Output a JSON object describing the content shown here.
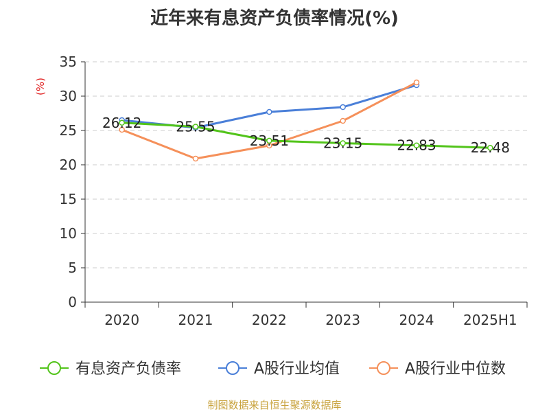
{
  "chart_data": {
    "type": "line",
    "title": "近年来有息资产负债率情况(%)",
    "ylabel": "(%)",
    "xlabel": "",
    "categories": [
      "2020",
      "2021",
      "2022",
      "2023",
      "2024",
      "2025H1"
    ],
    "ylim": [
      0,
      35
    ],
    "yticks": [
      "0",
      "5",
      "10",
      "15",
      "20",
      "25",
      "30",
      "35"
    ],
    "grid": true,
    "legend_position": "bottom",
    "series": [
      {
        "name": "有息资产负债率",
        "color": "#52c41a",
        "values": [
          26.12,
          25.55,
          23.51,
          23.15,
          22.83,
          22.48
        ],
        "labels": [
          "26.12",
          "25.55",
          "23.51",
          "23.15",
          "22.83",
          "22.48"
        ]
      },
      {
        "name": "A股行业均值",
        "color": "#4a7fd8",
        "values": [
          26.5,
          25.4,
          27.7,
          28.4,
          31.6,
          null
        ]
      },
      {
        "name": "A股行业中位数",
        "color": "#f5905a",
        "values": [
          25.1,
          20.9,
          22.8,
          26.4,
          32.0,
          null
        ]
      }
    ]
  },
  "footer": {
    "source": "制图数据来自恒生聚源数据库"
  }
}
